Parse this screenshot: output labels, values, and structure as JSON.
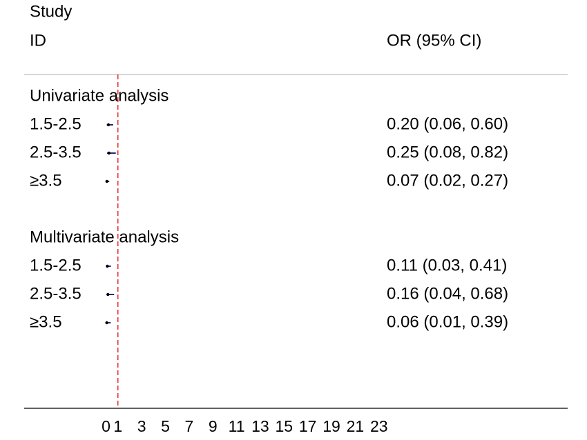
{
  "chart_data": {
    "type": "forest",
    "label_header": [
      "Study",
      "ID"
    ],
    "value_header": "OR (95% CI)",
    "groups": [
      {
        "name": "Univariate analysis",
        "categories": [
          "1.5-2.5",
          "2.5-3.5",
          "≥3.5"
        ],
        "values": [
          0.2,
          0.25,
          0.07
        ],
        "ci_lower": [
          0.06,
          0.08,
          0.02
        ],
        "ci_upper": [
          0.6,
          0.82,
          0.27
        ],
        "value_labels": [
          "0.20 (0.06, 0.60)",
          "0.25 (0.08, 0.82)",
          "0.07 (0.02, 0.27)"
        ]
      },
      {
        "name": "Multivariate analysis",
        "categories": [
          "1.5-2.5",
          "2.5-3.5",
          "≥3.5"
        ],
        "values": [
          0.11,
          0.16,
          0.06
        ],
        "ci_lower": [
          0.03,
          0.04,
          0.01
        ],
        "ci_upper": [
          0.41,
          0.68,
          0.39
        ],
        "value_labels": [
          "0.11 (0.03, 0.41)",
          "0.16 (0.04, 0.68)",
          "0.06 (0.01, 0.39)"
        ]
      }
    ],
    "reference_line": 1,
    "reference_color": "#e8262b",
    "point_color": "#000000",
    "ci_color": "#1f2a80",
    "xlim": [
      -6.9,
      38.9
    ],
    "xticks": [
      0,
      1,
      3,
      5,
      7,
      9,
      11,
      13,
      15,
      17,
      19,
      21,
      23
    ]
  }
}
